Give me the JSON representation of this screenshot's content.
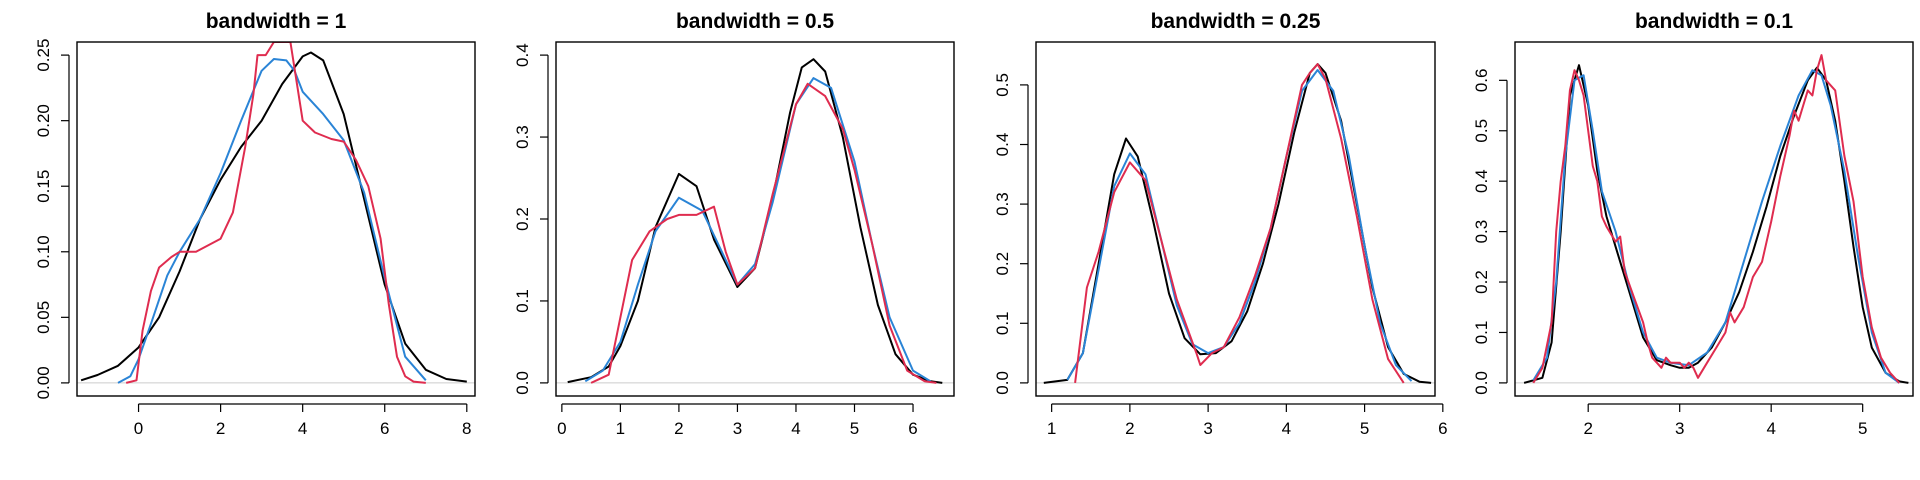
{
  "colors": {
    "black": "#000000",
    "blue": "#2a84d6",
    "red": "#df2c4f"
  },
  "chart_data": [
    {
      "type": "line",
      "title": "bandwidth = 1",
      "xlim": [
        -1.5,
        8.2
      ],
      "ylim": [
        0,
        0.25
      ],
      "xticks": [
        0,
        2,
        4,
        6,
        8
      ],
      "yticks": [
        0.0,
        0.05,
        0.1,
        0.15,
        0.2,
        0.25
      ],
      "xtick_labels": [
        "0",
        "2",
        "4",
        "6",
        "8"
      ],
      "ytick_labels": [
        "0.00",
        "0.05",
        "0.10",
        "0.15",
        "0.20",
        "0.25"
      ],
      "series": [
        {
          "color": "black",
          "x": [
            -1.4,
            -1,
            -0.5,
            0,
            0.5,
            1,
            1.5,
            2,
            2.5,
            3,
            3.5,
            4,
            4.2,
            4.5,
            5,
            5.5,
            6,
            6.5,
            7,
            7.5,
            8
          ],
          "y": [
            0.002,
            0.006,
            0.013,
            0.027,
            0.05,
            0.085,
            0.125,
            0.155,
            0.18,
            0.2,
            0.228,
            0.249,
            0.252,
            0.246,
            0.205,
            0.14,
            0.075,
            0.03,
            0.01,
            0.003,
            0.001
          ]
        },
        {
          "color": "blue",
          "x": [
            -0.5,
            -0.2,
            0,
            0.3,
            0.7,
            1,
            1.5,
            2,
            2.5,
            3,
            3.3,
            3.6,
            3.8,
            4,
            4.5,
            5,
            5.5,
            6,
            6.5,
            7
          ],
          "y": [
            0,
            0.005,
            0.018,
            0.045,
            0.082,
            0.1,
            0.125,
            0.16,
            0.2,
            0.238,
            0.247,
            0.246,
            0.238,
            0.222,
            0.205,
            0.185,
            0.145,
            0.08,
            0.02,
            0.002
          ]
        },
        {
          "color": "red",
          "x": [
            -0.3,
            -0.05,
            0.1,
            0.3,
            0.5,
            0.8,
            1,
            1.4,
            2,
            2.3,
            2.6,
            2.8,
            2.9,
            3.1,
            3.3,
            3.5,
            3.7,
            3.8,
            4.0,
            4.3,
            4.7,
            5,
            5.3,
            5.6,
            5.9,
            6.1,
            6.3,
            6.5,
            6.7,
            7
          ],
          "y": [
            0,
            0.002,
            0.04,
            0.07,
            0.088,
            0.096,
            0.1,
            0.1,
            0.11,
            0.13,
            0.18,
            0.22,
            0.25,
            0.25,
            0.26,
            0.26,
            0.26,
            0.24,
            0.2,
            0.191,
            0.186,
            0.184,
            0.17,
            0.15,
            0.11,
            0.06,
            0.02,
            0.005,
            0.001,
            0
          ]
        }
      ]
    },
    {
      "type": "line",
      "title": "bandwidth = 0.5",
      "xlim": [
        -0.1,
        6.7
      ],
      "ylim": [
        0,
        0.4
      ],
      "xticks": [
        0,
        1,
        2,
        3,
        4,
        5,
        6
      ],
      "yticks": [
        0.0,
        0.1,
        0.2,
        0.3,
        0.4
      ],
      "xtick_labels": [
        "0",
        "1",
        "2",
        "3",
        "4",
        "5",
        "6"
      ],
      "ytick_labels": [
        "0.0",
        "0.1",
        "0.2",
        "0.3",
        "0.4"
      ],
      "series": [
        {
          "color": "black",
          "x": [
            0.1,
            0.5,
            0.8,
            1,
            1.3,
            1.6,
            2,
            2.3,
            2.6,
            3,
            3.3,
            3.6,
            3.9,
            4.1,
            4.3,
            4.5,
            4.8,
            5.1,
            5.4,
            5.7,
            6,
            6.3,
            6.5
          ],
          "y": [
            0.001,
            0.007,
            0.02,
            0.045,
            0.1,
            0.19,
            0.255,
            0.24,
            0.175,
            0.117,
            0.14,
            0.225,
            0.33,
            0.385,
            0.395,
            0.38,
            0.3,
            0.19,
            0.095,
            0.035,
            0.01,
            0.002,
            0
          ]
        },
        {
          "color": "blue",
          "x": [
            0.4,
            0.7,
            1,
            1.3,
            1.6,
            2,
            2.4,
            2.7,
            3,
            3.3,
            3.6,
            4,
            4.3,
            4.6,
            5,
            5.3,
            5.6,
            6,
            6.3
          ],
          "y": [
            0.002,
            0.015,
            0.05,
            0.12,
            0.185,
            0.226,
            0.21,
            0.165,
            0.12,
            0.145,
            0.22,
            0.34,
            0.372,
            0.36,
            0.27,
            0.17,
            0.08,
            0.015,
            0.002
          ]
        },
        {
          "color": "red",
          "x": [
            0.5,
            0.8,
            1,
            1.2,
            1.5,
            1.8,
            2,
            2.3,
            2.6,
            2.8,
            3,
            3.3,
            3.6,
            4,
            4.2,
            4.5,
            4.8,
            5,
            5.3,
            5.6,
            5.9,
            6.2,
            6.4
          ],
          "y": [
            0,
            0.01,
            0.08,
            0.15,
            0.185,
            0.2,
            0.205,
            0.205,
            0.215,
            0.16,
            0.12,
            0.14,
            0.23,
            0.34,
            0.365,
            0.35,
            0.31,
            0.26,
            0.17,
            0.07,
            0.015,
            0.002,
            0
          ]
        }
      ]
    },
    {
      "type": "line",
      "title": "bandwidth = 0.25",
      "xlim": [
        0.8,
        5.9
      ],
      "ylim": [
        0,
        0.55
      ],
      "xticks": [
        1,
        2,
        3,
        4,
        5,
        6
      ],
      "yticks": [
        0.0,
        0.1,
        0.2,
        0.3,
        0.4,
        0.5
      ],
      "xtick_labels": [
        "1",
        "2",
        "3",
        "4",
        "5",
        "6"
      ],
      "ytick_labels": [
        "0.0",
        "0.1",
        "0.2",
        "0.3",
        "0.4",
        "0.5"
      ],
      "series": [
        {
          "color": "black",
          "x": [
            0.9,
            1.2,
            1.4,
            1.6,
            1.8,
            1.95,
            2.1,
            2.3,
            2.5,
            2.7,
            2.9,
            3.1,
            3.3,
            3.5,
            3.7,
            3.9,
            4.1,
            4.3,
            4.4,
            4.5,
            4.7,
            4.9,
            5.1,
            5.3,
            5.5,
            5.7,
            5.85
          ],
          "y": [
            0,
            0.005,
            0.05,
            0.2,
            0.35,
            0.41,
            0.38,
            0.27,
            0.15,
            0.075,
            0.048,
            0.05,
            0.07,
            0.12,
            0.2,
            0.3,
            0.42,
            0.52,
            0.535,
            0.52,
            0.44,
            0.3,
            0.16,
            0.06,
            0.015,
            0.002,
            0
          ]
        },
        {
          "color": "blue",
          "x": [
            1.2,
            1.4,
            1.6,
            1.8,
            2,
            2.2,
            2.4,
            2.6,
            2.8,
            3,
            3.2,
            3.4,
            3.6,
            3.8,
            4,
            4.2,
            4.4,
            4.6,
            4.8,
            5,
            5.2,
            5.4,
            5.6
          ],
          "y": [
            0.005,
            0.05,
            0.19,
            0.33,
            0.385,
            0.35,
            0.24,
            0.13,
            0.065,
            0.05,
            0.06,
            0.1,
            0.17,
            0.26,
            0.38,
            0.49,
            0.525,
            0.49,
            0.38,
            0.23,
            0.1,
            0.03,
            0.003
          ]
        },
        {
          "color": "red",
          "x": [
            1.3,
            1.45,
            1.6,
            1.8,
            2,
            2.2,
            2.4,
            2.6,
            2.85,
            2.9,
            3.05,
            3.2,
            3.4,
            3.6,
            3.8,
            4,
            4.2,
            4.3,
            4.4,
            4.5,
            4.7,
            4.9,
            5.1,
            5.3,
            5.5
          ],
          "y": [
            0,
            0.16,
            0.22,
            0.32,
            0.37,
            0.34,
            0.24,
            0.14,
            0.05,
            0.03,
            0.05,
            0.06,
            0.11,
            0.18,
            0.26,
            0.38,
            0.5,
            0.52,
            0.535,
            0.51,
            0.41,
            0.28,
            0.14,
            0.04,
            0
          ]
        }
      ]
    },
    {
      "type": "line",
      "title": "bandwidth = 0.1",
      "xlim": [
        1.2,
        5.55
      ],
      "ylim": [
        0,
        0.65
      ],
      "xticks": [
        2,
        3,
        4,
        5
      ],
      "yticks": [
        0.0,
        0.1,
        0.2,
        0.3,
        0.4,
        0.5,
        0.6
      ],
      "xtick_labels": [
        "2",
        "3",
        "4",
        "5"
      ],
      "ytick_labels": [
        "0.0",
        "0.1",
        "0.2",
        "0.3",
        "0.4",
        "0.5",
        "0.6"
      ],
      "series": [
        {
          "color": "black",
          "x": [
            1.3,
            1.5,
            1.6,
            1.7,
            1.8,
            1.9,
            2,
            2.1,
            2.2,
            2.3,
            2.45,
            2.6,
            2.75,
            2.9,
            3,
            3.1,
            3.2,
            3.35,
            3.5,
            3.65,
            3.8,
            3.95,
            4.1,
            4.25,
            4.4,
            4.5,
            4.6,
            4.7,
            4.8,
            4.9,
            5,
            5.1,
            5.25,
            5.4,
            5.5
          ],
          "y": [
            0,
            0.01,
            0.08,
            0.3,
            0.57,
            0.63,
            0.55,
            0.42,
            0.33,
            0.27,
            0.18,
            0.09,
            0.045,
            0.035,
            0.03,
            0.03,
            0.04,
            0.07,
            0.12,
            0.18,
            0.26,
            0.35,
            0.45,
            0.53,
            0.6,
            0.625,
            0.6,
            0.52,
            0.4,
            0.27,
            0.15,
            0.07,
            0.02,
            0.003,
            0
          ]
        },
        {
          "color": "blue",
          "x": [
            1.4,
            1.55,
            1.65,
            1.75,
            1.85,
            1.95,
            2.05,
            2.15,
            2.3,
            2.45,
            2.6,
            2.75,
            2.9,
            3.1,
            3.3,
            3.5,
            3.7,
            3.9,
            4.1,
            4.3,
            4.45,
            4.55,
            4.65,
            4.8,
            4.95,
            5.1,
            5.25,
            5.4
          ],
          "y": [
            0.005,
            0.05,
            0.2,
            0.45,
            0.6,
            0.61,
            0.5,
            0.38,
            0.3,
            0.19,
            0.1,
            0.05,
            0.04,
            0.035,
            0.06,
            0.12,
            0.24,
            0.36,
            0.47,
            0.57,
            0.62,
            0.61,
            0.55,
            0.42,
            0.25,
            0.1,
            0.02,
            0
          ]
        },
        {
          "color": "red",
          "x": [
            1.4,
            1.5,
            1.6,
            1.65,
            1.7,
            1.75,
            1.8,
            1.85,
            1.9,
            1.95,
            2,
            2.05,
            2.1,
            2.15,
            2.2,
            2.3,
            2.35,
            2.4,
            2.5,
            2.6,
            2.65,
            2.7,
            2.75,
            2.8,
            2.85,
            2.9,
            3,
            3.05,
            3.1,
            3.15,
            3.2,
            3.3,
            3.4,
            3.5,
            3.55,
            3.6,
            3.7,
            3.8,
            3.9,
            3.95,
            4,
            4.1,
            4.2,
            4.25,
            4.3,
            4.35,
            4.4,
            4.45,
            4.5,
            4.55,
            4.6,
            4.7,
            4.8,
            4.9,
            5,
            5.1,
            5.2,
            5.3,
            5.4
          ],
          "y": [
            0,
            0.03,
            0.12,
            0.3,
            0.4,
            0.47,
            0.58,
            0.62,
            0.6,
            0.57,
            0.5,
            0.43,
            0.4,
            0.33,
            0.31,
            0.28,
            0.29,
            0.22,
            0.17,
            0.12,
            0.08,
            0.05,
            0.04,
            0.03,
            0.05,
            0.04,
            0.04,
            0.03,
            0.04,
            0.03,
            0.01,
            0.04,
            0.07,
            0.1,
            0.14,
            0.12,
            0.15,
            0.21,
            0.24,
            0.28,
            0.32,
            0.41,
            0.49,
            0.54,
            0.52,
            0.55,
            0.58,
            0.57,
            0.62,
            0.65,
            0.6,
            0.58,
            0.45,
            0.36,
            0.21,
            0.11,
            0.05,
            0.02,
            0
          ]
        }
      ]
    }
  ]
}
